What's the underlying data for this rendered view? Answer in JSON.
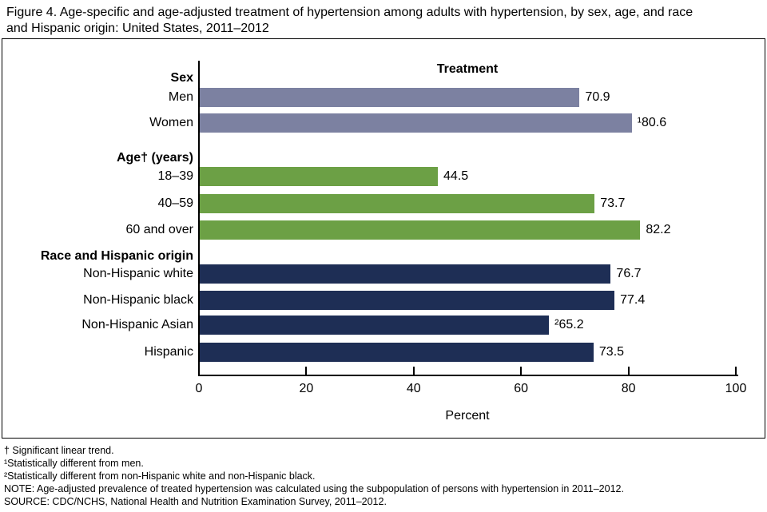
{
  "figure": {
    "title_lines": [
      "Figure 4. Age-specific and age-adjusted treatment of hypertension among adults with hypertension, by sex, age, and race",
      "and Hispanic origin: United States, 2011–2012"
    ],
    "footnotes": [
      "† Significant linear trend.",
      "¹Statistically different from men.",
      "²Statistically different from non-Hispanic white and non-Hispanic black.",
      "NOTE: Age-adjusted prevalence of treated hypertension was calculated using the subpopulation of persons with hypertension in 2011–2012.",
      "SOURCE: CDC/NCHS, National Health and Nutrition Examination Survey, 2011–2012."
    ]
  },
  "chart_data": {
    "type": "bar",
    "orientation": "horizontal",
    "title": "Treatment",
    "xlabel": "Percent",
    "xlim": [
      0,
      100
    ],
    "xticks": [
      0,
      20,
      40,
      60,
      80,
      100
    ],
    "grid": false,
    "legend": "none",
    "colors": {
      "sex": "#7c81a1",
      "age": "#6ca045",
      "race": "#1e2e55",
      "axis": "#000000"
    },
    "groups": [
      {
        "label": "Sex",
        "color": "#7c81a1",
        "bars": [
          {
            "label": "Men",
            "value": 70.9,
            "value_label": "70.9"
          },
          {
            "label": "Women",
            "value": 80.6,
            "value_label": "¹80.6"
          }
        ]
      },
      {
        "label": "Age† (years)",
        "color": "#6ca045",
        "bars": [
          {
            "label": "18–39",
            "value": 44.5,
            "value_label": "44.5"
          },
          {
            "label": "40–59",
            "value": 73.7,
            "value_label": "73.7"
          },
          {
            "label": "60 and over",
            "value": 82.2,
            "value_label": "82.2"
          }
        ]
      },
      {
        "label": "Race and Hispanic origin",
        "color": "#1e2e55",
        "bars": [
          {
            "label": "Non-Hispanic white",
            "value": 76.7,
            "value_label": "76.7"
          },
          {
            "label": "Non-Hispanic black",
            "value": 77.4,
            "value_label": "77.4"
          },
          {
            "label": "Non-Hispanic Asian",
            "value": 65.2,
            "value_label": "²65.2"
          },
          {
            "label": "Hispanic",
            "value": 73.5,
            "value_label": "73.5"
          }
        ]
      }
    ]
  }
}
